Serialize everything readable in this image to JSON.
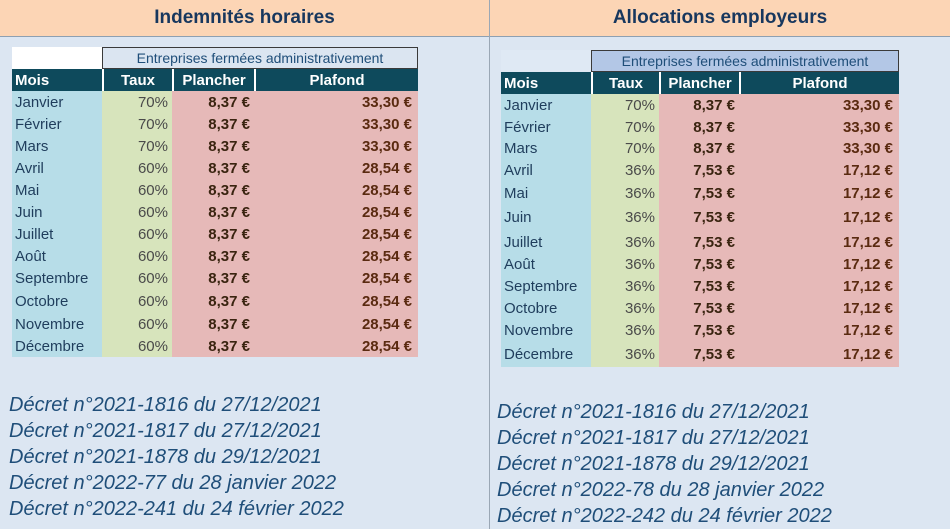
{
  "left": {
    "title": "Indemnités horaires",
    "banner": "Entreprises fermées administrativement",
    "columns": [
      "Mois",
      "Taux",
      "Plancher",
      "Plafond"
    ],
    "rows": [
      [
        "Janvier",
        "70%",
        "8,37 €",
        "33,30 €"
      ],
      [
        "Février",
        "70%",
        "8,37 €",
        "33,30 €"
      ],
      [
        "Mars",
        "70%",
        "8,37 €",
        "33,30 €"
      ],
      [
        "Avril",
        "60%",
        "8,37 €",
        "28,54 €"
      ],
      [
        "Mai",
        "60%",
        "8,37 €",
        "28,54 €"
      ],
      [
        "Juin",
        "60%",
        "8,37 €",
        "28,54 €"
      ],
      [
        "Juillet",
        "60%",
        "8,37 €",
        "28,54 €"
      ],
      [
        "Août",
        "60%",
        "8,37 €",
        "28,54 €"
      ],
      [
        "Septembre",
        "60%",
        "8,37 €",
        "28,54 €"
      ],
      [
        "Octobre",
        "60%",
        "8,37 €",
        "28,54 €"
      ],
      [
        "Novembre",
        "60%",
        "8,37 €",
        "28,54 €"
      ],
      [
        "Décembre",
        "60%",
        "8,37 €",
        "28,54 €"
      ]
    ],
    "decrees": [
      "Décret n°2021-1816 du 27/12/2021",
      "Décret n°2021-1817 du 27/12/2021",
      "Décret n°2021-1878 du 29/12/2021",
      "Décret n°2022-77 du 28 janvier 2022",
      "Décret n°2022-241 du 24 février 2022"
    ]
  },
  "right": {
    "title": "Allocations employeurs",
    "banner": "Entreprises fermées administrativement",
    "columns": [
      "Mois",
      "Taux",
      "Plancher",
      "Plafond"
    ],
    "rows": [
      [
        "Janvier",
        "70%",
        "8,37 €",
        "33,30 €"
      ],
      [
        "Février",
        "70%",
        "8,37 €",
        "33,30 €"
      ],
      [
        "Mars",
        "70%",
        "8,37 €",
        "33,30 €"
      ],
      [
        "Avril",
        "36%",
        "7,53 €",
        "17,12 €"
      ],
      [
        "Mai",
        "36%",
        "7,53 €",
        "17,12 €"
      ],
      [
        "Juin",
        "36%",
        "7,53 €",
        "17,12 €"
      ],
      [
        "Juillet",
        "36%",
        "7,53 €",
        "17,12 €"
      ],
      [
        "Août",
        "36%",
        "7,53 €",
        "17,12 €"
      ],
      [
        "Septembre",
        "36%",
        "7,53 €",
        "17,12 €"
      ],
      [
        "Octobre",
        "36%",
        "7,53 €",
        "17,12 €"
      ],
      [
        "Novembre",
        "36%",
        "7,53 €",
        "17,12 €"
      ],
      [
        "Décembre",
        "36%",
        "7,53 €",
        "17,12 €"
      ]
    ],
    "decrees": [
      "Décret n°2021-1816 du 27/12/2021",
      "Décret n°2021-1817 du 27/12/2021",
      "Décret n°2021-1878 du 29/12/2021",
      "Décret n°2022-78 du 28 janvier 2022",
      "Décret n°2022-242 du 24 février 2022"
    ]
  }
}
